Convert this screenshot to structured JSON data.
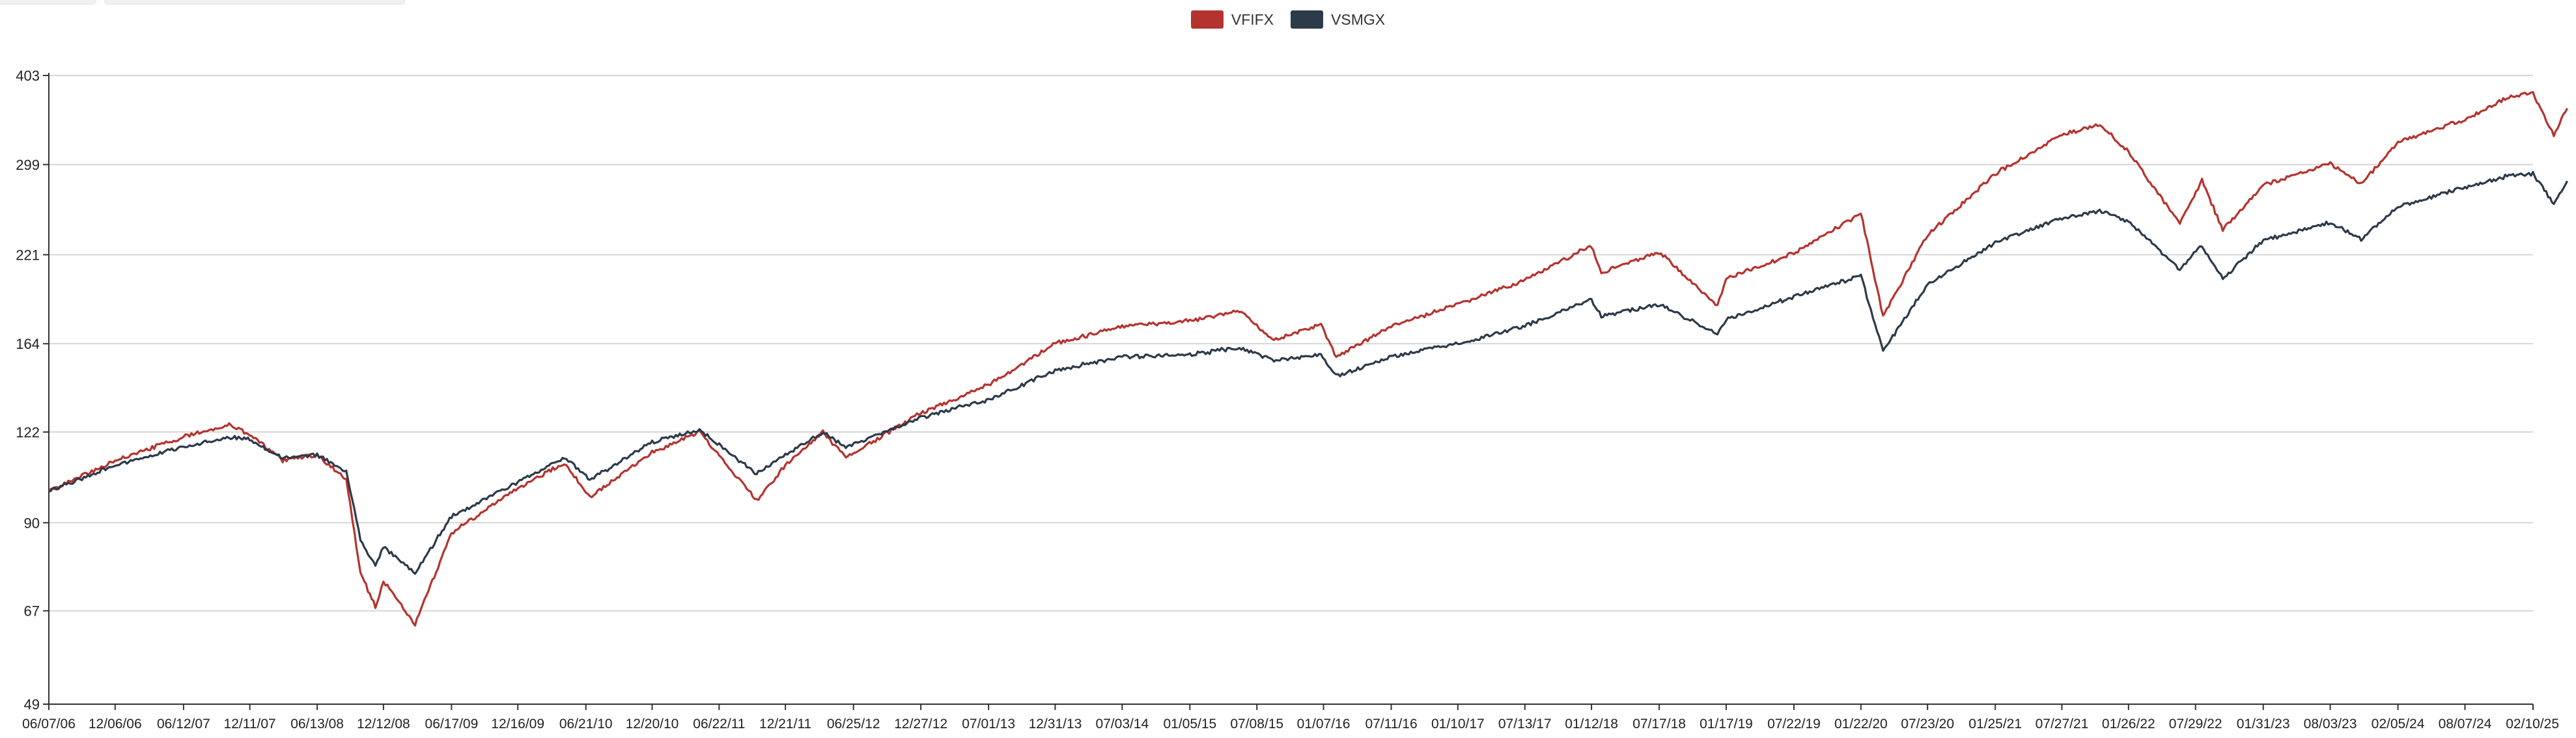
{
  "chart_data": {
    "type": "line",
    "y_tick_labels": [
      "403",
      "299",
      "221",
      "164",
      "122",
      "90",
      "67",
      "49"
    ],
    "y_tick_values": [
      403,
      299,
      221,
      164,
      122,
      90,
      67,
      49
    ],
    "y_scale": "log",
    "ylim": [
      49,
      403
    ],
    "x_tick_labels": [
      "06/07/06",
      "12/06/06",
      "06/12/07",
      "12/11/07",
      "06/13/08",
      "12/12/08",
      "06/17/09",
      "12/16/09",
      "06/21/10",
      "12/20/10",
      "06/22/11",
      "12/21/11",
      "06/25/12",
      "12/27/12",
      "07/01/13",
      "12/31/13",
      "07/03/14",
      "01/05/15",
      "07/08/15",
      "01/07/16",
      "07/11/16",
      "01/10/17",
      "07/13/17",
      "01/12/18",
      "07/17/18",
      "01/17/19",
      "07/22/19",
      "01/22/20",
      "07/23/20",
      "01/25/21",
      "07/27/21",
      "01/26/22",
      "07/29/22",
      "01/31/23",
      "08/03/23",
      "02/05/24",
      "08/07/24",
      "02/10/25"
    ],
    "x_range": [
      "06/07/06",
      "02/10/25"
    ],
    "grid": "horizontal",
    "legend_position": "top-center",
    "series": [
      {
        "name": "VFIFX",
        "color": "#b5332e",
        "points": [
          [
            "06/07/06",
            100
          ],
          [
            "12/06/06",
            111
          ],
          [
            "06/12/07",
            120
          ],
          [
            "10/15/07",
            125
          ],
          [
            "12/11/07",
            121
          ],
          [
            "03/10/08",
            111
          ],
          [
            "06/13/08",
            113
          ],
          [
            "09/01/08",
            104
          ],
          [
            "10/10/08",
            76
          ],
          [
            "11/20/08",
            68
          ],
          [
            "12/12/08",
            74
          ],
          [
            "03/09/09",
            64
          ],
          [
            "06/17/09",
            87
          ],
          [
            "12/16/09",
            101
          ],
          [
            "04/23/10",
            110
          ],
          [
            "07/02/10",
            98
          ],
          [
            "12/20/10",
            114
          ],
          [
            "04/29/11",
            122
          ],
          [
            "10/03/11",
            97
          ],
          [
            "12/21/11",
            109
          ],
          [
            "04/02/12",
            122
          ],
          [
            "06/04/12",
            112
          ],
          [
            "12/27/12",
            130
          ],
          [
            "07/01/13",
            143
          ],
          [
            "12/31/13",
            164
          ],
          [
            "07/03/14",
            174
          ],
          [
            "01/05/15",
            177
          ],
          [
            "05/21/15",
            183
          ],
          [
            "08/24/15",
            166
          ],
          [
            "12/31/15",
            175
          ],
          [
            "02/11/16",
            157
          ],
          [
            "07/11/16",
            174
          ],
          [
            "01/10/17",
            187
          ],
          [
            "07/13/17",
            203
          ],
          [
            "01/12/18",
            228
          ],
          [
            "02/08/18",
            208
          ],
          [
            "07/17/18",
            223
          ],
          [
            "12/24/18",
            186
          ],
          [
            "01/17/19",
            204
          ],
          [
            "07/22/19",
            222
          ],
          [
            "01/22/20",
            254
          ],
          [
            "03/23/20",
            180
          ],
          [
            "07/23/20",
            236
          ],
          [
            "01/25/21",
            290
          ],
          [
            "07/27/21",
            330
          ],
          [
            "11/08/21",
            342
          ],
          [
            "01/26/22",
            312
          ],
          [
            "06/16/22",
            245
          ],
          [
            "08/16/22",
            283
          ],
          [
            "10/12/22",
            240
          ],
          [
            "01/31/23",
            279
          ],
          [
            "08/03/23",
            300
          ],
          [
            "10/27/23",
            280
          ],
          [
            "02/05/24",
            322
          ],
          [
            "08/07/24",
            348
          ],
          [
            "12/06/24",
            375
          ],
          [
            "02/10/25",
            380
          ],
          [
            "04/08/25",
            330
          ],
          [
            "05/15/25",
            361
          ]
        ]
      },
      {
        "name": "VSMGX",
        "color": "#2c3a4a",
        "points": [
          [
            "06/07/06",
            100
          ],
          [
            "12/06/06",
            109
          ],
          [
            "06/12/07",
            116
          ],
          [
            "10/15/07",
            120
          ],
          [
            "12/11/07",
            119
          ],
          [
            "03/10/08",
            112
          ],
          [
            "06/13/08",
            113
          ],
          [
            "09/01/08",
            107
          ],
          [
            "10/10/08",
            85
          ],
          [
            "11/20/08",
            78
          ],
          [
            "12/12/08",
            83
          ],
          [
            "03/09/09",
            76
          ],
          [
            "06/17/09",
            92
          ],
          [
            "12/16/09",
            103
          ],
          [
            "04/23/10",
            112
          ],
          [
            "07/02/10",
            104
          ],
          [
            "12/20/10",
            118
          ],
          [
            "04/29/11",
            123
          ],
          [
            "10/03/11",
            106
          ],
          [
            "12/21/11",
            113
          ],
          [
            "04/02/12",
            122
          ],
          [
            "06/04/12",
            116
          ],
          [
            "12/27/12",
            128
          ],
          [
            "07/01/13",
            136
          ],
          [
            "12/31/13",
            150
          ],
          [
            "07/03/14",
            157
          ],
          [
            "01/05/15",
            158
          ],
          [
            "05/21/15",
            162
          ],
          [
            "08/24/15",
            155
          ],
          [
            "12/31/15",
            158
          ],
          [
            "02/11/16",
            147
          ],
          [
            "07/11/16",
            157
          ],
          [
            "01/10/17",
            164
          ],
          [
            "07/13/17",
            174
          ],
          [
            "01/12/18",
            190
          ],
          [
            "02/08/18",
            180
          ],
          [
            "07/17/18",
            187
          ],
          [
            "12/24/18",
            170
          ],
          [
            "01/17/19",
            178
          ],
          [
            "07/22/19",
            192
          ],
          [
            "01/22/20",
            206
          ],
          [
            "03/23/20",
            160
          ],
          [
            "07/23/20",
            200
          ],
          [
            "01/25/21",
            230
          ],
          [
            "07/27/21",
            250
          ],
          [
            "11/08/21",
            256
          ],
          [
            "01/26/22",
            247
          ],
          [
            "06/16/22",
            210
          ],
          [
            "08/16/22",
            228
          ],
          [
            "10/12/22",
            204
          ],
          [
            "01/31/23",
            232
          ],
          [
            "08/03/23",
            246
          ],
          [
            "10/27/23",
            233
          ],
          [
            "02/05/24",
            260
          ],
          [
            "08/07/24",
            277
          ],
          [
            "12/06/24",
            288
          ],
          [
            "02/10/25",
            290
          ],
          [
            "04/08/25",
            262
          ],
          [
            "05/15/25",
            283
          ]
        ]
      }
    ]
  }
}
